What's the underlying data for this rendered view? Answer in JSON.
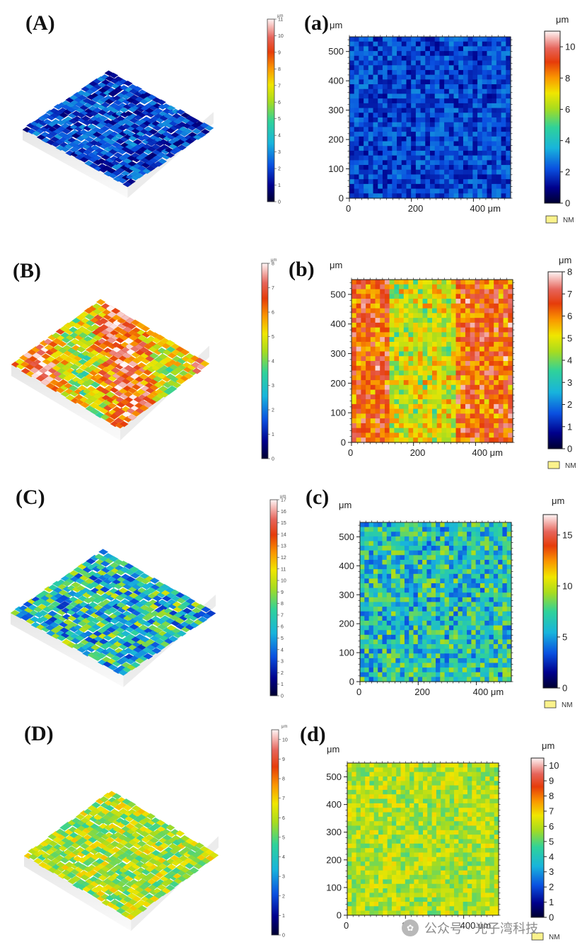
{
  "chart_data": [
    {
      "type": "heatmap",
      "panel_label_3d": "(A)",
      "panel_label_2d": "(a)",
      "unit": "μm",
      "nm_label": "NM",
      "x_ticks": [
        "0",
        "200",
        "400 μm"
      ],
      "y_ticks": [
        "0",
        "100",
        "200",
        "300",
        "400",
        "500"
      ],
      "xlim": [
        0,
        520
      ],
      "ylim": [
        0,
        550
      ],
      "scale_3d_range": [
        0,
        11
      ],
      "scale_3d_ticks": [
        "0",
        "1",
        "2",
        "3",
        "4",
        "5",
        "6",
        "7",
        "8",
        "9",
        "10",
        "11"
      ],
      "scale_2d_range": [
        0,
        11
      ],
      "scale_2d_ticks": [
        "0",
        "2",
        "4",
        "6",
        "8",
        "10"
      ],
      "dominant_value": 2.0,
      "variation": 0.45,
      "pattern": "uniform"
    },
    {
      "type": "heatmap",
      "panel_label_3d": "(B)",
      "panel_label_2d": "(b)",
      "unit": "μm",
      "nm_label": "NM",
      "x_ticks": [
        "0",
        "200",
        "400 μm"
      ],
      "y_ticks": [
        "0",
        "100",
        "200",
        "300",
        "400",
        "500"
      ],
      "xlim": [
        0,
        520
      ],
      "ylim": [
        0,
        550
      ],
      "scale_3d_range": [
        0,
        8
      ],
      "scale_3d_ticks": [
        "0",
        "1",
        "2",
        "3",
        "4",
        "5",
        "6",
        "7",
        "8"
      ],
      "scale_2d_range": [
        0,
        8
      ],
      "scale_2d_ticks": [
        "0",
        "1",
        "2",
        "3",
        "4",
        "5",
        "6",
        "7",
        "8"
      ],
      "dominant_value": 5.8,
      "variation": 0.7,
      "pattern": "stripes"
    },
    {
      "type": "heatmap",
      "panel_label_3d": "(C)",
      "panel_label_2d": "(c)",
      "unit": "μm",
      "nm_label": "NM",
      "x_ticks": [
        "0",
        "200",
        "400 μm"
      ],
      "y_ticks": [
        "0",
        "100",
        "200",
        "300",
        "400",
        "500"
      ],
      "xlim": [
        0,
        520
      ],
      "ylim": [
        0,
        550
      ],
      "scale_3d_range": [
        0,
        17
      ],
      "scale_3d_ticks": [
        "0",
        "1",
        "2",
        "3",
        "4",
        "5",
        "6",
        "7",
        "8",
        "9",
        "10",
        "11",
        "12",
        "13",
        "14",
        "15",
        "16",
        "17"
      ],
      "scale_2d_range": [
        0,
        17
      ],
      "scale_2d_ticks": [
        "0",
        "5",
        "10",
        "15"
      ],
      "dominant_value": 6.5,
      "variation": 0.9,
      "pattern": "uniform"
    },
    {
      "type": "heatmap",
      "panel_label_3d": "(D)",
      "panel_label_2d": "(d)",
      "unit": "μm",
      "nm_label": "NM",
      "x_ticks": [
        "0",
        "200",
        "400 μm"
      ],
      "y_ticks": [
        "0",
        "100",
        "200",
        "300",
        "400",
        "500"
      ],
      "xlim": [
        0,
        520
      ],
      "ylim": [
        0,
        550
      ],
      "scale_3d_range": [
        0,
        10.5
      ],
      "scale_3d_ticks": [
        "0",
        "1",
        "2",
        "3",
        "4",
        "5",
        "6",
        "7",
        "8",
        "9",
        "10"
      ],
      "scale_2d_range": [
        0,
        10.5
      ],
      "scale_2d_ticks": [
        "0",
        "1",
        "2",
        "3",
        "4",
        "5",
        "6",
        "7",
        "8",
        "9",
        "10"
      ],
      "dominant_value": 5.9,
      "variation": 0.5,
      "pattern": "uniform"
    }
  ],
  "watermark": {
    "icon": "wechat-icon",
    "text": "公众号 · 光子湾科技"
  }
}
